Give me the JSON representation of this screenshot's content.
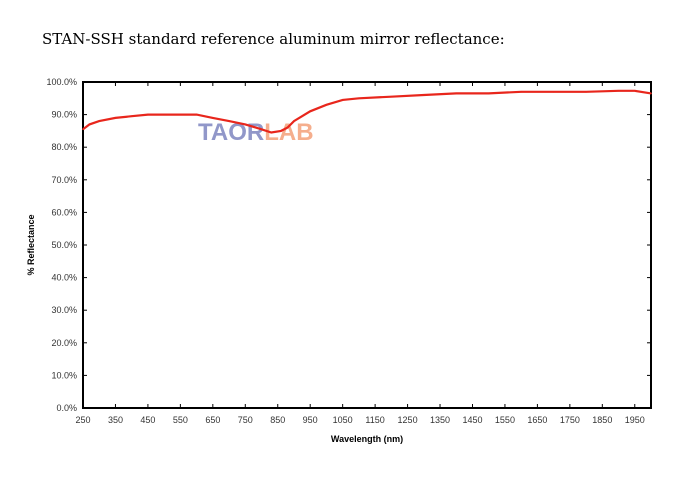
{
  "title": "STAN-SSH standard reference aluminum mirror reflectance:",
  "watermark": "TAORLAB",
  "chart_data": {
    "type": "line",
    "title": "",
    "xlabel": "Wavelength (nm)",
    "ylabel": "% Reflectance",
    "xlim": [
      250,
      2000
    ],
    "ylim": [
      0,
      100
    ],
    "xticks": [
      "250",
      "350",
      "450",
      "550",
      "650",
      "750",
      "850",
      "950",
      "1050",
      "1150",
      "1250",
      "1350",
      "1450",
      "1550",
      "1650",
      "1750",
      "1850",
      "1950"
    ],
    "yticks": [
      "0.0%",
      "10.0%",
      "20.0%",
      "30.0%",
      "40.0%",
      "50.0%",
      "60.0%",
      "70.0%",
      "80.0%",
      "90.0%",
      "100.0%"
    ],
    "grid": false,
    "line_color": "#e8261c",
    "series": [
      {
        "x": [
          250,
          270,
          300,
          350,
          400,
          450,
          500,
          550,
          600,
          650,
          700,
          750,
          800,
          830,
          860,
          880,
          900,
          950,
          1000,
          1050,
          1100,
          1200,
          1300,
          1400,
          1500,
          1600,
          1700,
          1800,
          1900,
          1950,
          2000
        ],
        "y": [
          85.5,
          87,
          88,
          89,
          89.5,
          90,
          90,
          90,
          90,
          89,
          88,
          87,
          85.5,
          84.5,
          85,
          86,
          88,
          91,
          93,
          94.5,
          95,
          95.5,
          96,
          96.5,
          96.5,
          97,
          97,
          97,
          97.3,
          97.3,
          96.5
        ]
      }
    ]
  }
}
